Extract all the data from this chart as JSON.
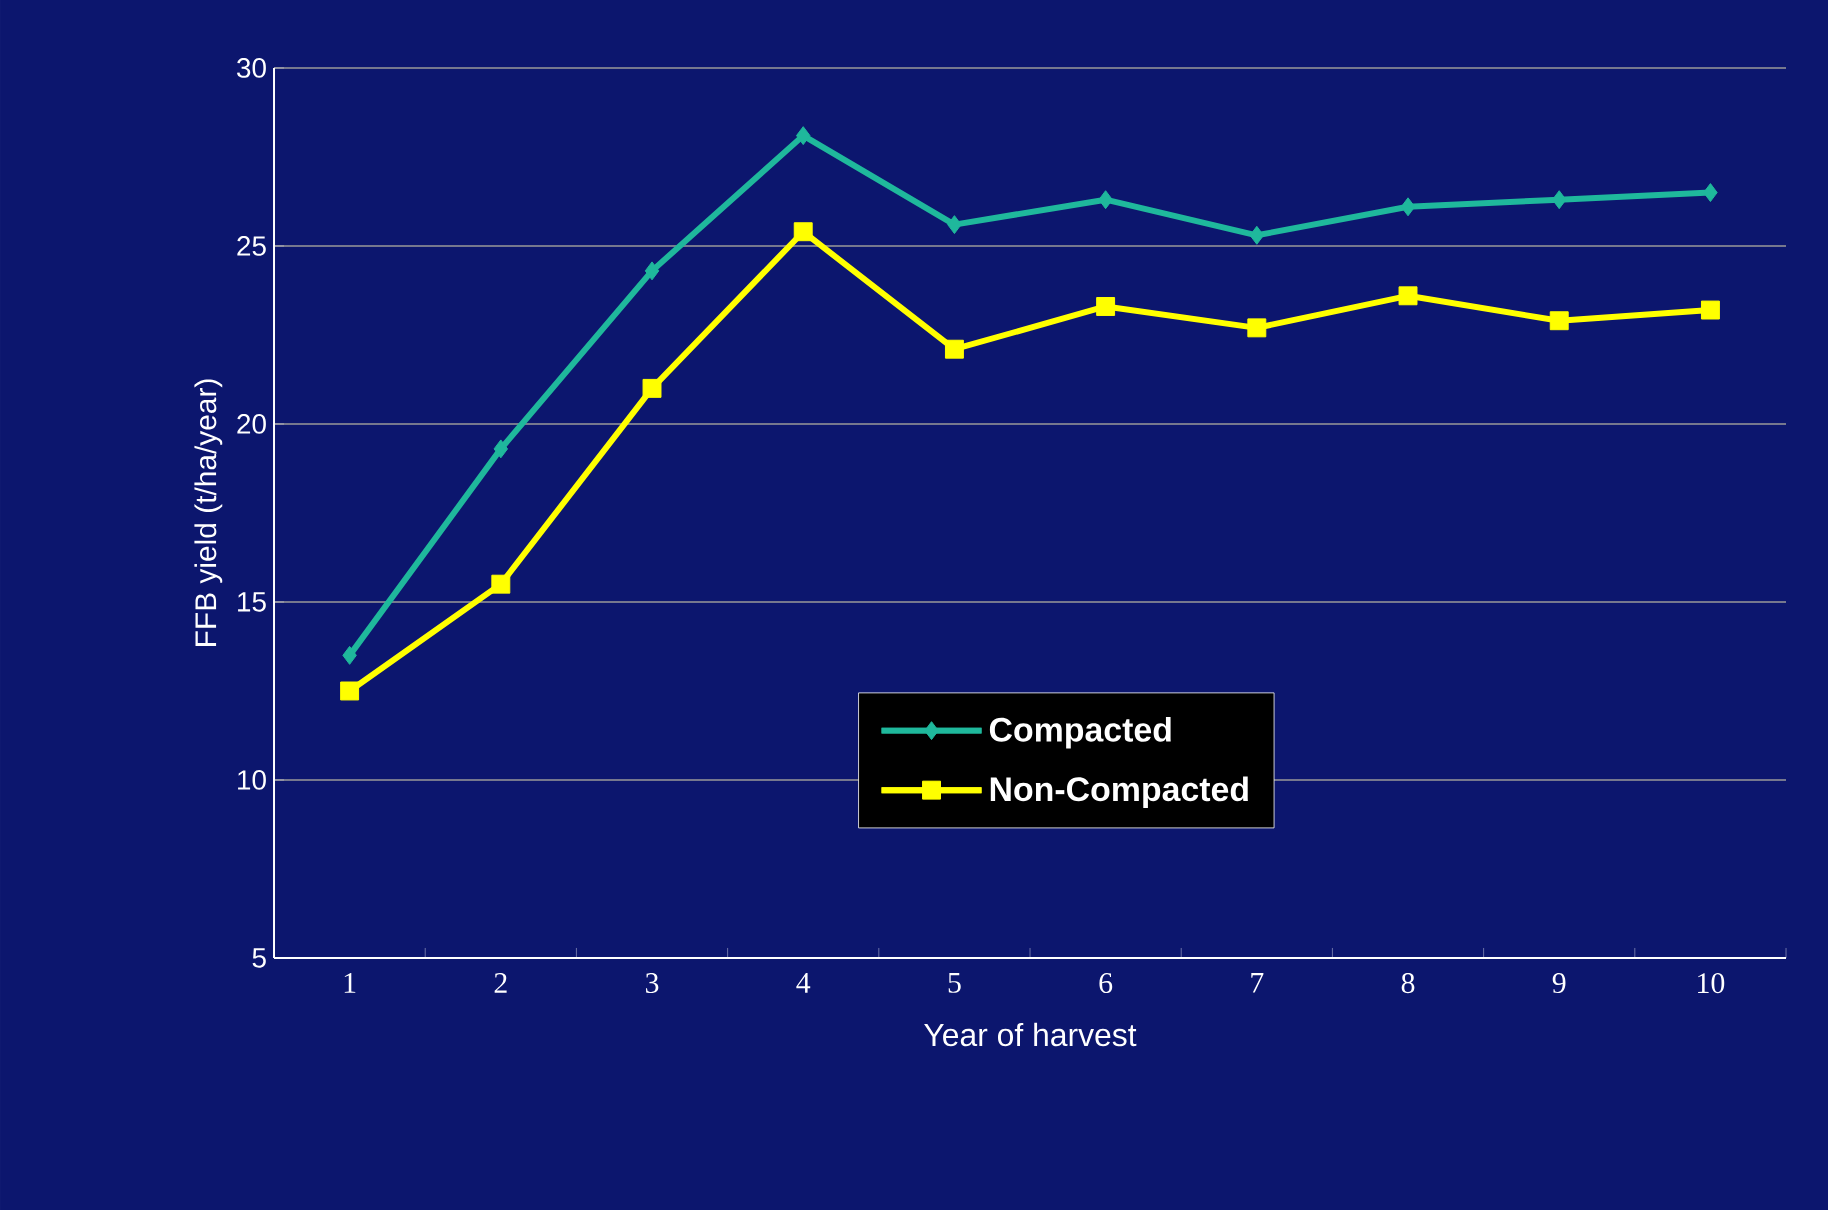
{
  "chart_data": {
    "type": "line",
    "xlabel": "Year of harvest",
    "ylabel": "FFB yield (t/ha/year)",
    "categories": [
      "1",
      "2",
      "3",
      "4",
      "5",
      "6",
      "7",
      "8",
      "9",
      "10"
    ],
    "series": [
      {
        "name": "Compacted",
        "color": "#1fb89c",
        "marker": "diamond",
        "values": [
          13.5,
          19.3,
          24.3,
          28.1,
          25.6,
          26.3,
          25.3,
          26.1,
          26.3,
          26.5
        ]
      },
      {
        "name": "Non-Compacted",
        "color": "#ffff00",
        "marker": "square",
        "values": [
          12.5,
          15.5,
          21.0,
          25.4,
          22.1,
          23.3,
          22.7,
          23.6,
          22.9,
          23.2
        ]
      }
    ],
    "ylim": [
      5,
      30
    ],
    "yticks": [
      5,
      10,
      15,
      20,
      25,
      30
    ],
    "grid": "y",
    "legend": "center"
  }
}
